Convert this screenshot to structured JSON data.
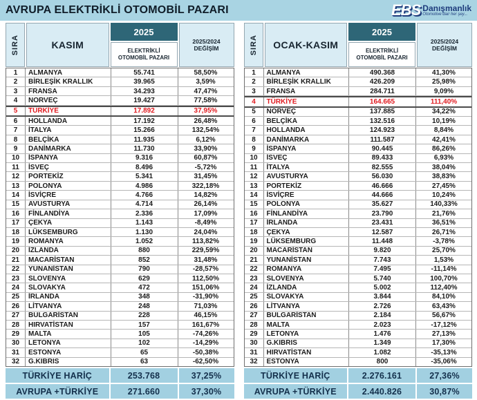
{
  "header": {
    "title": "AVRUPA ELEKTRİKLİ OTOMOBİL PAZARI",
    "logo": {
      "name": "EBS",
      "suffix": "Danışmanlık",
      "tagline": "Otomotive dair her şey..."
    }
  },
  "table_headers": {
    "sira": "SIRA",
    "year": "2025",
    "market": "ELEKTRİKLİ OTOMOBİL PAZARI",
    "change": "2025/2024 DEĞİŞİM"
  },
  "colors": {
    "band_blue": "#A9D4E3",
    "header_cell_blue": "#D9ECF4",
    "year_teal": "#2E6677",
    "summary_blue": "#A2D0E1",
    "highlight_red": "#E01A1F",
    "logo_navy": "#1E3C7C"
  },
  "chart_data": [
    {
      "type": "table",
      "title": "KASIM",
      "columns": [
        "SIRA",
        "KASIM",
        "2025 ELEKTRİKLİ OTOMOBİL PAZARI",
        "2025/2024 DEĞİŞİM"
      ],
      "highlight_country": "TÜRKİYE",
      "rows": [
        [
          "1",
          "ALMANYA",
          "55.741",
          "58,50%"
        ],
        [
          "2",
          "BİRLEŞİK KRALLIK",
          "39.965",
          "3,59%"
        ],
        [
          "3",
          "FRANSA",
          "34.293",
          "47,47%"
        ],
        [
          "4",
          "NORVEÇ",
          "19.427",
          "77,58%"
        ],
        [
          "5",
          "TÜRKİYE",
          "17.892",
          "37,95%"
        ],
        [
          "6",
          "HOLLANDA",
          "17.192",
          "26,48%"
        ],
        [
          "7",
          "İTALYA",
          "15.266",
          "132,54%"
        ],
        [
          "8",
          "BELÇİKA",
          "11.935",
          "6,12%"
        ],
        [
          "9",
          "DANİMARKA",
          "11.730",
          "33,90%"
        ],
        [
          "10",
          "İSPANYA",
          "9.316",
          "60,87%"
        ],
        [
          "11",
          "İSVEÇ",
          "8.496",
          "-5,72%"
        ],
        [
          "12",
          "PORTEKİZ",
          "5.341",
          "31,45%"
        ],
        [
          "13",
          "POLONYA",
          "4.986",
          "322,18%"
        ],
        [
          "14",
          "İSVİÇRE",
          "4.766",
          "14,82%"
        ],
        [
          "15",
          "AVUSTURYA",
          "4.714",
          "26,14%"
        ],
        [
          "16",
          "FİNLANDİYA",
          "2.336",
          "17,09%"
        ],
        [
          "17",
          "ÇEKYA",
          "1.143",
          "-8,49%"
        ],
        [
          "18",
          "LÜKSEMBURG",
          "1.130",
          "24,04%"
        ],
        [
          "19",
          "ROMANYA",
          "1.052",
          "113,82%"
        ],
        [
          "20",
          "İZLANDA",
          "880",
          "229,59%"
        ],
        [
          "21",
          "MACARİSTAN",
          "852",
          "31,48%"
        ],
        [
          "22",
          "YUNANİSTAN",
          "790",
          "-28,57%"
        ],
        [
          "23",
          "SLOVENYA",
          "629",
          "112,50%"
        ],
        [
          "24",
          "SLOVAKYA",
          "472",
          "151,06%"
        ],
        [
          "25",
          "İRLANDA",
          "348",
          "-31,90%"
        ],
        [
          "26",
          "LİTVANYA",
          "248",
          "71,03%"
        ],
        [
          "27",
          "BULGARİSTAN",
          "228",
          "46,15%"
        ],
        [
          "28",
          "HIRVATİSTAN",
          "157",
          "161,67%"
        ],
        [
          "29",
          "MALTA",
          "105",
          "-74,26%"
        ],
        [
          "30",
          "LETONYA",
          "102",
          "-14,29%"
        ],
        [
          "31",
          "ESTONYA",
          "65",
          "-50,38%"
        ],
        [
          "32",
          "G.KIBRIS",
          "63",
          "-62,50%"
        ]
      ],
      "footer_rows": [
        [
          "TÜRKİYE HARİÇ",
          "253.768",
          "37,25%"
        ],
        [
          "AVRUPA +TÜRKİYE",
          "271.660",
          "37,30%"
        ]
      ]
    },
    {
      "type": "table",
      "title": "OCAK-KASIM",
      "columns": [
        "SIRA",
        "OCAK-KASIM",
        "2025 ELEKTRİKLİ OTOMOBİL PAZARI",
        "2025/2024 DEĞİŞİM"
      ],
      "highlight_country": "TÜRKİYE",
      "rows": [
        [
          "1",
          "ALMANYA",
          "490.368",
          "41,30%"
        ],
        [
          "2",
          "BİRLEŞİK KRALLIK",
          "426.209",
          "25,98%"
        ],
        [
          "3",
          "FRANSA",
          "284.711",
          "9,09%"
        ],
        [
          "4",
          "TÜRKİYE",
          "164.665",
          "111,40%"
        ],
        [
          "5",
          "NORVEÇ",
          "137.885",
          "34,22%"
        ],
        [
          "6",
          "BELÇİKA",
          "132.516",
          "10,19%"
        ],
        [
          "7",
          "HOLLANDA",
          "124.923",
          "8,84%"
        ],
        [
          "8",
          "DANİMARKA",
          "111.587",
          "42,41%"
        ],
        [
          "9",
          "İSPANYA",
          "90.445",
          "86,26%"
        ],
        [
          "10",
          "İSVEÇ",
          "89.433",
          "6,93%"
        ],
        [
          "11",
          "İTALYA",
          "82.555",
          "38,04%"
        ],
        [
          "12",
          "AVUSTURYA",
          "56.030",
          "38,83%"
        ],
        [
          "13",
          "PORTEKİZ",
          "46.666",
          "27,45%"
        ],
        [
          "14",
          "İSVİÇRE",
          "44.666",
          "10,24%"
        ],
        [
          "15",
          "POLONYA",
          "35.627",
          "140,33%"
        ],
        [
          "16",
          "FİNLANDİYA",
          "23.790",
          "21,76%"
        ],
        [
          "17",
          "İRLANDA",
          "23.431",
          "36,51%"
        ],
        [
          "18",
          "ÇEKYA",
          "12.587",
          "26,71%"
        ],
        [
          "19",
          "LÜKSEMBURG",
          "11.448",
          "-3,78%"
        ],
        [
          "20",
          "MACARİSTAN",
          "9.820",
          "25,70%"
        ],
        [
          "21",
          "YUNANİSTAN",
          "7.743",
          "1,53%"
        ],
        [
          "22",
          "ROMANYA",
          "7.495",
          "-11,14%"
        ],
        [
          "23",
          "SLOVENYA",
          "5.740",
          "100,70%"
        ],
        [
          "24",
          "İZLANDA",
          "5.002",
          "112,40%"
        ],
        [
          "25",
          "SLOVAKYA",
          "3.844",
          "84,10%"
        ],
        [
          "26",
          "LİTVANYA",
          "2.726",
          "63,43%"
        ],
        [
          "27",
          "BULGARİSTAN",
          "2.184",
          "56,67%"
        ],
        [
          "28",
          "MALTA",
          "2.023",
          "-17,12%"
        ],
        [
          "29",
          "LETONYA",
          "1.476",
          "27,13%"
        ],
        [
          "30",
          "G.KIBRIS",
          "1.349",
          "17,30%"
        ],
        [
          "31",
          "HIRVATİSTAN",
          "1.082",
          "-35,13%"
        ],
        [
          "32",
          "ESTONYA",
          "800",
          "-35,06%"
        ]
      ],
      "footer_rows": [
        [
          "TÜRKİYE HARİÇ",
          "2.276.161",
          "27,36%"
        ],
        [
          "AVRUPA +TÜRKİYE",
          "2.440.826",
          "30,87%"
        ]
      ]
    }
  ]
}
